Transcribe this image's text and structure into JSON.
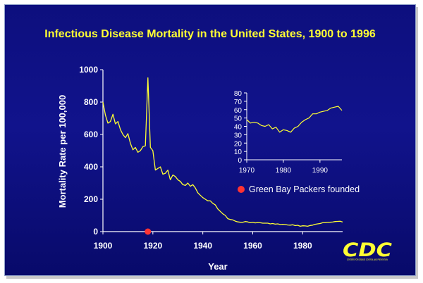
{
  "chart_data": [
    {
      "type": "line",
      "title": "Infectious Disease Mortality in the United States, 1900 to 1996",
      "xlabel": "Year",
      "ylabel": "Mortality Rate per 100,000",
      "xlim": [
        1900,
        1996
      ],
      "ylim": [
        0,
        1000
      ],
      "x_ticks": [
        "1900",
        "1920",
        "1940",
        "1960",
        "1980"
      ],
      "y_ticks": [
        "0",
        "200",
        "400",
        "600",
        "800",
        "1000"
      ],
      "line_color": "#ffff33",
      "points": [
        [
          1900,
          800
        ],
        [
          1901,
          720
        ],
        [
          1902,
          670
        ],
        [
          1903,
          680
        ],
        [
          1904,
          725
        ],
        [
          1905,
          665
        ],
        [
          1906,
          680
        ],
        [
          1907,
          630
        ],
        [
          1908,
          600
        ],
        [
          1909,
          580
        ],
        [
          1910,
          605
        ],
        [
          1911,
          545
        ],
        [
          1912,
          505
        ],
        [
          1913,
          520
        ],
        [
          1914,
          490
        ],
        [
          1915,
          500
        ],
        [
          1916,
          525
        ],
        [
          1917,
          530
        ],
        [
          1918,
          950
        ],
        [
          1919,
          520
        ],
        [
          1920,
          500
        ],
        [
          1921,
          380
        ],
        [
          1922,
          390
        ],
        [
          1923,
          400
        ],
        [
          1924,
          355
        ],
        [
          1925,
          360
        ],
        [
          1926,
          380
        ],
        [
          1927,
          320
        ],
        [
          1928,
          350
        ],
        [
          1929,
          340
        ],
        [
          1930,
          320
        ],
        [
          1931,
          310
        ],
        [
          1932,
          290
        ],
        [
          1933,
          285
        ],
        [
          1934,
          300
        ],
        [
          1935,
          280
        ],
        [
          1936,
          290
        ],
        [
          1937,
          270
        ],
        [
          1938,
          240
        ],
        [
          1939,
          225
        ],
        [
          1940,
          210
        ],
        [
          1941,
          200
        ],
        [
          1942,
          190
        ],
        [
          1943,
          190
        ],
        [
          1944,
          175
        ],
        [
          1945,
          165
        ],
        [
          1946,
          140
        ],
        [
          1947,
          125
        ],
        [
          1948,
          110
        ],
        [
          1949,
          100
        ],
        [
          1950,
          80
        ],
        [
          1951,
          75
        ],
        [
          1952,
          72
        ],
        [
          1953,
          65
        ],
        [
          1954,
          60
        ],
        [
          1955,
          58
        ],
        [
          1956,
          58
        ],
        [
          1957,
          62
        ],
        [
          1958,
          60
        ],
        [
          1959,
          55
        ],
        [
          1960,
          58
        ],
        [
          1961,
          54
        ],
        [
          1962,
          56
        ],
        [
          1963,
          55
        ],
        [
          1964,
          52
        ],
        [
          1965,
          52
        ],
        [
          1966,
          52
        ],
        [
          1967,
          48
        ],
        [
          1968,
          50
        ],
        [
          1969,
          46
        ],
        [
          1970,
          48
        ],
        [
          1971,
          44
        ],
        [
          1972,
          45
        ],
        [
          1973,
          44
        ],
        [
          1974,
          41
        ],
        [
          1975,
          40
        ],
        [
          1976,
          42
        ],
        [
          1977,
          37
        ],
        [
          1978,
          39
        ],
        [
          1979,
          33
        ],
        [
          1980,
          36
        ],
        [
          1981,
          35
        ],
        [
          1982,
          33
        ],
        [
          1983,
          38
        ],
        [
          1984,
          40
        ],
        [
          1985,
          45
        ],
        [
          1986,
          48
        ],
        [
          1987,
          50
        ],
        [
          1988,
          55
        ],
        [
          1989,
          55
        ],
        [
          1990,
          57
        ],
        [
          1991,
          58
        ],
        [
          1992,
          59
        ],
        [
          1993,
          62
        ],
        [
          1994,
          63
        ],
        [
          1995,
          64
        ],
        [
          1996,
          59
        ]
      ],
      "markers": [
        {
          "x": 1918,
          "y": 0,
          "color": "#ff3333",
          "label": "Green Bay Packers founded"
        }
      ]
    },
    {
      "type": "line",
      "title": "",
      "xlim": [
        1970,
        1996
      ],
      "ylim": [
        0,
        80
      ],
      "x_ticks": [
        "1970",
        "1980",
        "1990"
      ],
      "y_ticks": [
        "0",
        "10",
        "20",
        "30",
        "40",
        "50",
        "60",
        "70",
        "80"
      ],
      "line_color": "#ffff33",
      "points": [
        [
          1970,
          48
        ],
        [
          1971,
          44
        ],
        [
          1972,
          45
        ],
        [
          1973,
          44
        ],
        [
          1974,
          41
        ],
        [
          1975,
          40
        ],
        [
          1976,
          42
        ],
        [
          1977,
          37
        ],
        [
          1978,
          39
        ],
        [
          1979,
          33
        ],
        [
          1980,
          36
        ],
        [
          1981,
          35
        ],
        [
          1982,
          33
        ],
        [
          1983,
          38
        ],
        [
          1984,
          40
        ],
        [
          1985,
          45
        ],
        [
          1986,
          48
        ],
        [
          1987,
          50
        ],
        [
          1988,
          55
        ],
        [
          1989,
          55
        ],
        [
          1990,
          57
        ],
        [
          1991,
          58
        ],
        [
          1992,
          59
        ],
        [
          1993,
          62
        ],
        [
          1994,
          63
        ],
        [
          1995,
          64
        ],
        [
          1996,
          59
        ]
      ]
    }
  ],
  "logo": {
    "text": "CDC",
    "subtitle": "CENTERS FOR DISEASE CONTROL AND PREVENTION",
    "color": "#ffff33"
  }
}
